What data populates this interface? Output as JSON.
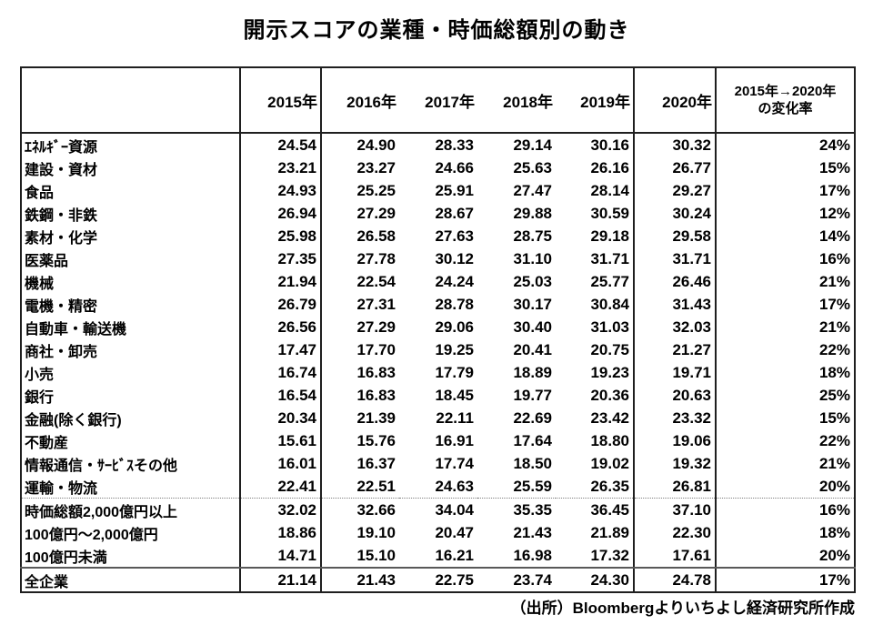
{
  "page": {
    "background": "#ffffff",
    "text_color": "#000000",
    "border_color": "#1f1f1f"
  },
  "chart_data": {
    "type": "table",
    "title": "開示スコアの業種・時価総額別の動き",
    "source": "（出所）Bloombergよりいちよし経済研究所作成",
    "columns": [
      "",
      "2015年",
      "2016年",
      "2017年",
      "2018年",
      "2019年",
      "2020年",
      "2015年→2020年\nの変化率"
    ],
    "legend_note": "rows grouped as industry / marketcap / total, separated by dotted and solid rules",
    "rows": [
      {
        "label": "ｴﾈﾙｷﾞｰ資源",
        "values": [
          "24.54",
          "24.90",
          "28.33",
          "29.14",
          "30.16",
          "30.32"
        ],
        "change": "24%",
        "group": "industry"
      },
      {
        "label": "建設・資材",
        "values": [
          "23.21",
          "23.27",
          "24.66",
          "25.63",
          "26.16",
          "26.77"
        ],
        "change": "15%",
        "group": "industry"
      },
      {
        "label": "食品",
        "values": [
          "24.93",
          "25.25",
          "25.91",
          "27.47",
          "28.14",
          "29.27"
        ],
        "change": "17%",
        "group": "industry"
      },
      {
        "label": "鉄鋼・非鉄",
        "values": [
          "26.94",
          "27.29",
          "28.67",
          "29.88",
          "30.59",
          "30.24"
        ],
        "change": "12%",
        "group": "industry"
      },
      {
        "label": "素材・化学",
        "values": [
          "25.98",
          "26.58",
          "27.63",
          "28.75",
          "29.18",
          "29.58"
        ],
        "change": "14%",
        "group": "industry"
      },
      {
        "label": "医薬品",
        "values": [
          "27.35",
          "27.78",
          "30.12",
          "31.10",
          "31.71",
          "31.71"
        ],
        "change": "16%",
        "group": "industry"
      },
      {
        "label": "機械",
        "values": [
          "21.94",
          "22.54",
          "24.24",
          "25.03",
          "25.77",
          "26.46"
        ],
        "change": "21%",
        "group": "industry"
      },
      {
        "label": "電機・精密",
        "values": [
          "26.79",
          "27.31",
          "28.78",
          "30.17",
          "30.84",
          "31.43"
        ],
        "change": "17%",
        "group": "industry"
      },
      {
        "label": "自動車・輸送機",
        "values": [
          "26.56",
          "27.29",
          "29.06",
          "30.40",
          "31.03",
          "32.03"
        ],
        "change": "21%",
        "group": "industry"
      },
      {
        "label": "商社・卸売",
        "values": [
          "17.47",
          "17.70",
          "19.25",
          "20.41",
          "20.75",
          "21.27"
        ],
        "change": "22%",
        "group": "industry"
      },
      {
        "label": "小売",
        "values": [
          "16.74",
          "16.83",
          "17.79",
          "18.89",
          "19.23",
          "19.71"
        ],
        "change": "18%",
        "group": "industry"
      },
      {
        "label": "銀行",
        "values": [
          "16.54",
          "16.83",
          "18.45",
          "19.77",
          "20.36",
          "20.63"
        ],
        "change": "25%",
        "group": "industry"
      },
      {
        "label": "金融(除く銀行)",
        "values": [
          "20.34",
          "21.39",
          "22.11",
          "22.69",
          "23.42",
          "23.32"
        ],
        "change": "15%",
        "group": "industry"
      },
      {
        "label": "不動産",
        "values": [
          "15.61",
          "15.76",
          "16.91",
          "17.64",
          "18.80",
          "19.06"
        ],
        "change": "22%",
        "group": "industry"
      },
      {
        "label": "情報通信・ｻｰﾋﾞｽその他",
        "values": [
          "16.01",
          "16.37",
          "17.74",
          "18.50",
          "19.02",
          "19.32"
        ],
        "change": "21%",
        "group": "industry"
      },
      {
        "label": "運輸・物流",
        "values": [
          "22.41",
          "22.51",
          "24.63",
          "25.59",
          "26.35",
          "26.81"
        ],
        "change": "20%",
        "group": "industry"
      },
      {
        "label": "時価総額2,000億円以上",
        "values": [
          "32.02",
          "32.66",
          "34.04",
          "35.35",
          "36.45",
          "37.10"
        ],
        "change": "16%",
        "group": "marketcap"
      },
      {
        "label": "100億円～2,000億円",
        "values": [
          "18.86",
          "19.10",
          "20.47",
          "21.43",
          "21.89",
          "22.30"
        ],
        "change": "18%",
        "group": "marketcap"
      },
      {
        "label": "100億円未満",
        "values": [
          "14.71",
          "15.10",
          "16.21",
          "16.98",
          "17.32",
          "17.61"
        ],
        "change": "20%",
        "group": "marketcap"
      },
      {
        "label": "全企業",
        "values": [
          "21.14",
          "21.43",
          "22.75",
          "23.74",
          "24.30",
          "24.78"
        ],
        "change": "17%",
        "group": "total"
      }
    ]
  }
}
